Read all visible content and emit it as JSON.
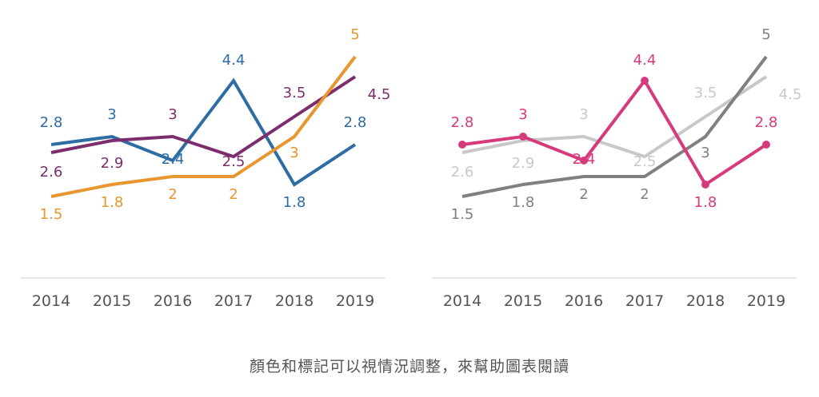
{
  "caption": "顏色和標記可以視情況調整，來幫助圖表閱讀",
  "chart_data": [
    {
      "type": "line",
      "categories": [
        "2014",
        "2015",
        "2016",
        "2017",
        "2018",
        "2019"
      ],
      "ylim": [
        0,
        5.2
      ],
      "grid": false,
      "series": [
        {
          "values": [
            2.8,
            3,
            2.4,
            4.4,
            1.8,
            2.8
          ],
          "color": "#2e6da4",
          "labels": [
            "2.8",
            "3",
            "2.4",
            "4.4",
            "1.8",
            "2.8"
          ],
          "markers": false
        },
        {
          "values": [
            2.6,
            2.9,
            3,
            2.5,
            3.5,
            4.5
          ],
          "color": "#7b2d6e",
          "labels": [
            "2.6",
            "2.9",
            "3",
            "2.5",
            "3.5",
            "4.5"
          ],
          "markers": false
        },
        {
          "values": [
            1.5,
            1.8,
            2,
            2,
            3,
            5
          ],
          "color": "#e8962e",
          "labels": [
            "1.5",
            "1.8",
            "2",
            "2",
            "3",
            "5"
          ],
          "markers": false
        }
      ]
    },
    {
      "type": "line",
      "categories": [
        "2014",
        "2015",
        "2016",
        "2017",
        "2018",
        "2019"
      ],
      "ylim": [
        0,
        5.2
      ],
      "grid": false,
      "series": [
        {
          "values": [
            2.6,
            2.9,
            3,
            2.5,
            3.5,
            4.5
          ],
          "color": "#c8c8c8",
          "labels": [
            "2.6",
            "2.9",
            "3",
            "2.5",
            "3.5",
            "4.5"
          ],
          "markers": false
        },
        {
          "values": [
            1.5,
            1.8,
            2,
            2,
            3,
            5
          ],
          "color": "#808080",
          "labels": [
            "1.5",
            "1.8",
            "2",
            "2",
            "3",
            "5"
          ],
          "markers": false
        },
        {
          "values": [
            2.8,
            3,
            2.4,
            4.4,
            1.8,
            2.8
          ],
          "color": "#d63a7d",
          "labels": [
            "2.8",
            "3",
            "2.4",
            "4.4",
            "1.8",
            "2.8"
          ],
          "markers": true
        }
      ]
    }
  ]
}
